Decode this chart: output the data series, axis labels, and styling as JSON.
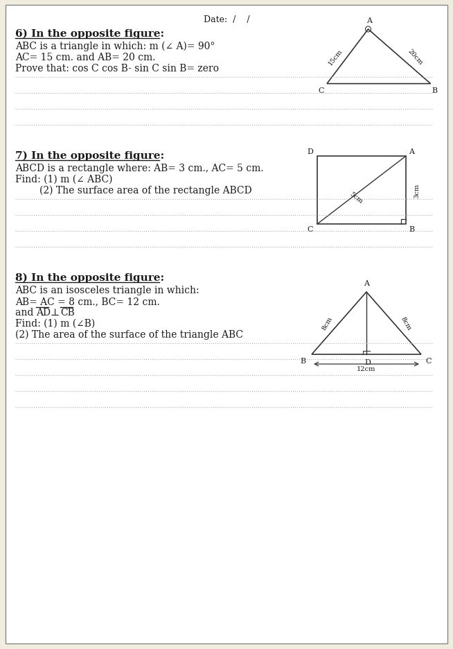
{
  "bg_color": "#f0ece0",
  "page_bg": "#ffffff",
  "date_text": "Date:  /    /",
  "q6": {
    "header": "6) In the opposite figure:",
    "line1": "ABC is a triangle in which: m (∠ A)= 90°",
    "line2": "AC= 15 cm. and AB= 20 cm.",
    "line3": "Prove that: cos C cos B- sin C sin B= zero",
    "dotted_lines": 4
  },
  "q7": {
    "header": "7) In the opposite figure:",
    "line1": "ABCD is a rectangle where: AB= 3 cm., AC= 5 cm.",
    "line2": "Find: (1) m (∠ ABC)",
    "line3": "        (2) The surface area of the rectangle ABCD",
    "dotted_lines": 4
  },
  "q8": {
    "header": "8) In the opposite figure:",
    "line1": "ABC is an isosceles triangle in which:",
    "line2": "AB= AC = 8 cm., BC= 12 cm.",
    "line3": "and AD ⊥ CB",
    "line4": "Find: (1) m (∠B)",
    "line5": "(2) The area of the surface of the triangle ABC",
    "dotted_lines": 5
  },
  "text_color": "#1a1a1a",
  "dot_color": "#aaaaaa",
  "line_color": "#333333",
  "font_size_header": 11,
  "font_size_body": 10
}
